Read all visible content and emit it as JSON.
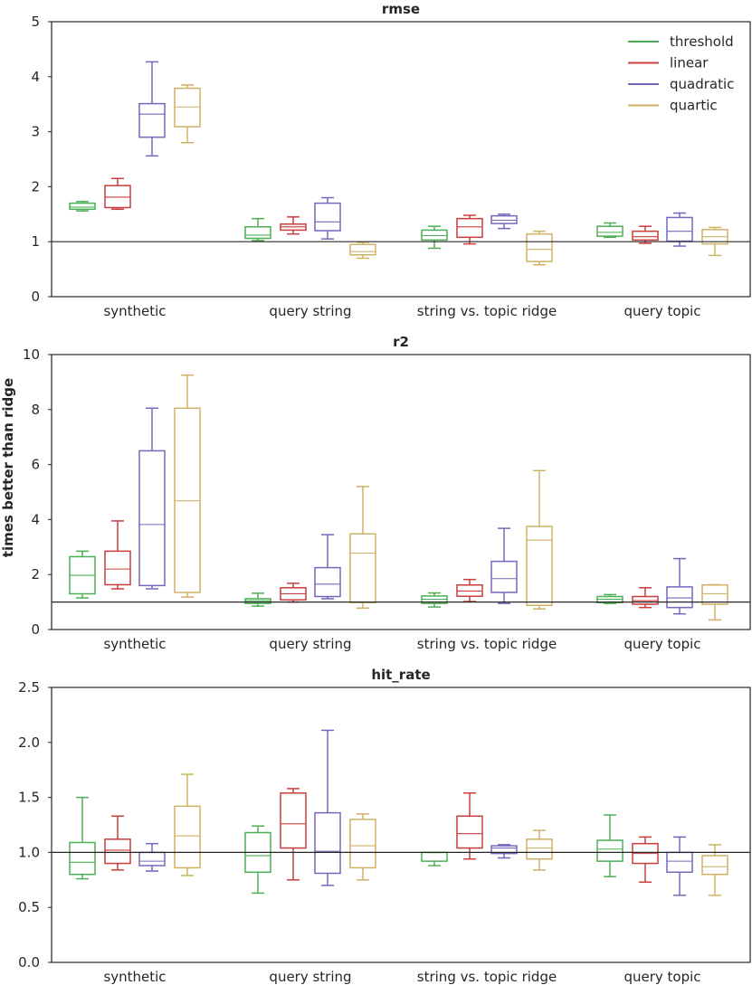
{
  "figure": {
    "ylabel": "times better than ridge"
  },
  "legend": {
    "position": "top-right of first panel",
    "entries": [
      {
        "name": "threshold",
        "color": "#4daf55"
      },
      {
        "name": "linear",
        "color": "#c93d3d"
      },
      {
        "name": "quadratic",
        "color": "#7667bd"
      },
      {
        "name": "quartic",
        "color": "#cfb264"
      }
    ]
  },
  "chart_data": [
    {
      "type": "box",
      "title": "rmse",
      "categories": [
        "synthetic",
        "query string",
        "string vs. topic ridge",
        "query topic"
      ],
      "ylim": [
        0,
        5
      ],
      "yticks": [
        0,
        1,
        2,
        3,
        4,
        5
      ],
      "ytick_labels": [
        "0",
        "1",
        "2",
        "3",
        "4",
        "5"
      ],
      "reference_line": 1,
      "series": [
        {
          "name": "threshold",
          "boxes": [
            {
              "min": 1.56,
              "q1": 1.59,
              "median": 1.63,
              "q3": 1.7,
              "max": 1.73
            },
            {
              "min": 1.02,
              "q1": 1.06,
              "median": 1.12,
              "q3": 1.27,
              "max": 1.42
            },
            {
              "min": 0.88,
              "q1": 1.03,
              "median": 1.11,
              "q3": 1.21,
              "max": 1.28
            },
            {
              "min": 1.08,
              "q1": 1.1,
              "median": 1.17,
              "q3": 1.28,
              "max": 1.34
            }
          ]
        },
        {
          "name": "linear",
          "boxes": [
            {
              "min": 1.59,
              "q1": 1.62,
              "median": 1.81,
              "q3": 2.02,
              "max": 2.15
            },
            {
              "min": 1.14,
              "q1": 1.21,
              "median": 1.27,
              "q3": 1.32,
              "max": 1.45
            },
            {
              "min": 0.96,
              "q1": 1.08,
              "median": 1.27,
              "q3": 1.42,
              "max": 1.48
            },
            {
              "min": 0.97,
              "q1": 1.03,
              "median": 1.09,
              "q3": 1.19,
              "max": 1.28
            }
          ]
        },
        {
          "name": "quadratic",
          "boxes": [
            {
              "min": 2.56,
              "q1": 2.9,
              "median": 3.32,
              "q3": 3.51,
              "max": 4.27
            },
            {
              "min": 1.05,
              "q1": 1.2,
              "median": 1.36,
              "q3": 1.7,
              "max": 1.8
            },
            {
              "min": 1.24,
              "q1": 1.33,
              "median": 1.39,
              "q3": 1.47,
              "max": 1.5
            },
            {
              "min": 0.92,
              "q1": 1.01,
              "median": 1.19,
              "q3": 1.44,
              "max": 1.52
            }
          ]
        },
        {
          "name": "quartic",
          "boxes": [
            {
              "min": 2.8,
              "q1": 3.09,
              "median": 3.45,
              "q3": 3.79,
              "max": 3.85
            },
            {
              "min": 0.7,
              "q1": 0.76,
              "median": 0.82,
              "q3": 0.95,
              "max": 0.99
            },
            {
              "min": 0.58,
              "q1": 0.64,
              "median": 0.86,
              "q3": 1.14,
              "max": 1.19
            },
            {
              "min": 0.75,
              "q1": 0.96,
              "median": 1.09,
              "q3": 1.22,
              "max": 1.26
            }
          ]
        }
      ]
    },
    {
      "type": "box",
      "title": "r2",
      "categories": [
        "synthetic",
        "query string",
        "string vs. topic ridge",
        "query topic"
      ],
      "ylim": [
        0,
        10
      ],
      "yticks": [
        0,
        2,
        4,
        6,
        8,
        10
      ],
      "ytick_labels": [
        "0",
        "2",
        "4",
        "6",
        "8",
        "10"
      ],
      "reference_line": 1,
      "series": [
        {
          "name": "threshold",
          "boxes": [
            {
              "min": 1.15,
              "q1": 1.3,
              "median": 1.97,
              "q3": 2.65,
              "max": 2.85
            },
            {
              "min": 0.85,
              "q1": 0.95,
              "median": 1.05,
              "q3": 1.12,
              "max": 1.32
            },
            {
              "min": 0.82,
              "q1": 0.95,
              "median": 1.1,
              "q3": 1.22,
              "max": 1.33
            },
            {
              "min": 0.95,
              "q1": 0.98,
              "median": 1.1,
              "q3": 1.2,
              "max": 1.27
            }
          ]
        },
        {
          "name": "linear",
          "boxes": [
            {
              "min": 1.48,
              "q1": 1.63,
              "median": 2.2,
              "q3": 2.85,
              "max": 3.95
            },
            {
              "min": 1.0,
              "q1": 1.08,
              "median": 1.3,
              "q3": 1.52,
              "max": 1.68
            },
            {
              "min": 1.02,
              "q1": 1.21,
              "median": 1.4,
              "q3": 1.62,
              "max": 1.82
            },
            {
              "min": 0.8,
              "q1": 0.92,
              "median": 1.05,
              "q3": 1.2,
              "max": 1.52
            }
          ]
        },
        {
          "name": "quadratic",
          "boxes": [
            {
              "min": 1.48,
              "q1": 1.6,
              "median": 3.82,
              "q3": 6.5,
              "max": 8.05
            },
            {
              "min": 1.12,
              "q1": 1.2,
              "median": 1.65,
              "q3": 2.25,
              "max": 3.45
            },
            {
              "min": 0.95,
              "q1": 1.35,
              "median": 1.85,
              "q3": 2.48,
              "max": 3.68
            },
            {
              "min": 0.57,
              "q1": 0.8,
              "median": 1.15,
              "q3": 1.55,
              "max": 2.58
            }
          ]
        },
        {
          "name": "quartic",
          "boxes": [
            {
              "min": 1.18,
              "q1": 1.35,
              "median": 4.68,
              "q3": 8.05,
              "max": 9.25
            },
            {
              "min": 0.78,
              "q1": 0.98,
              "median": 2.78,
              "q3": 3.48,
              "max": 5.2
            },
            {
              "min": 0.75,
              "q1": 0.88,
              "median": 3.25,
              "q3": 3.75,
              "max": 5.78
            },
            {
              "min": 0.35,
              "q1": 0.92,
              "median": 1.3,
              "q3": 1.62,
              "max": 1.63
            }
          ]
        }
      ]
    },
    {
      "type": "box",
      "title": "hit_rate",
      "categories": [
        "synthetic",
        "query string",
        "string vs. topic ridge",
        "query topic"
      ],
      "ylim": [
        0,
        2.5
      ],
      "yticks": [
        0,
        0.5,
        1.0,
        1.5,
        2.0,
        2.5
      ],
      "ytick_labels": [
        "0.0",
        "0.5",
        "1.0",
        "1.5",
        "2.0",
        "2.5"
      ],
      "reference_line": 1,
      "series": [
        {
          "name": "threshold",
          "boxes": [
            {
              "min": 0.76,
              "q1": 0.8,
              "median": 0.91,
              "q3": 1.09,
              "max": 1.5
            },
            {
              "min": 0.63,
              "q1": 0.82,
              "median": 0.97,
              "q3": 1.18,
              "max": 1.24
            },
            {
              "min": 0.88,
              "q1": 0.92,
              "median": 0.92,
              "q3": 1.0,
              "max": 1.0
            },
            {
              "min": 0.78,
              "q1": 0.92,
              "median": 1.03,
              "q3": 1.11,
              "max": 1.34
            }
          ]
        },
        {
          "name": "linear",
          "boxes": [
            {
              "min": 0.84,
              "q1": 0.9,
              "median": 1.02,
              "q3": 1.12,
              "max": 1.33
            },
            {
              "min": 0.75,
              "q1": 1.04,
              "median": 1.26,
              "q3": 1.54,
              "max": 1.58
            },
            {
              "min": 0.94,
              "q1": 1.04,
              "median": 1.17,
              "q3": 1.33,
              "max": 1.54
            },
            {
              "min": 0.73,
              "q1": 0.9,
              "median": 0.99,
              "q3": 1.08,
              "max": 1.14
            }
          ]
        },
        {
          "name": "quadratic",
          "boxes": [
            {
              "min": 0.83,
              "q1": 0.88,
              "median": 0.92,
              "q3": 1.0,
              "max": 1.08
            },
            {
              "min": 0.7,
              "q1": 0.81,
              "median": 1.01,
              "q3": 1.36,
              "max": 2.11
            },
            {
              "min": 0.95,
              "q1": 0.99,
              "median": 1.04,
              "q3": 1.06,
              "max": 1.07
            },
            {
              "min": 0.61,
              "q1": 0.82,
              "median": 0.92,
              "q3": 1.0,
              "max": 1.14
            }
          ]
        },
        {
          "name": "quartic",
          "boxes": [
            {
              "min": 0.79,
              "q1": 0.86,
              "median": 1.15,
              "q3": 1.42,
              "max": 1.71
            },
            {
              "min": 0.75,
              "q1": 0.86,
              "median": 1.06,
              "q3": 1.3,
              "max": 1.35
            },
            {
              "min": 0.84,
              "q1": 0.94,
              "median": 1.04,
              "q3": 1.12,
              "max": 1.2
            },
            {
              "min": 0.61,
              "q1": 0.8,
              "median": 0.87,
              "q3": 0.97,
              "max": 1.07
            }
          ]
        }
      ]
    }
  ]
}
